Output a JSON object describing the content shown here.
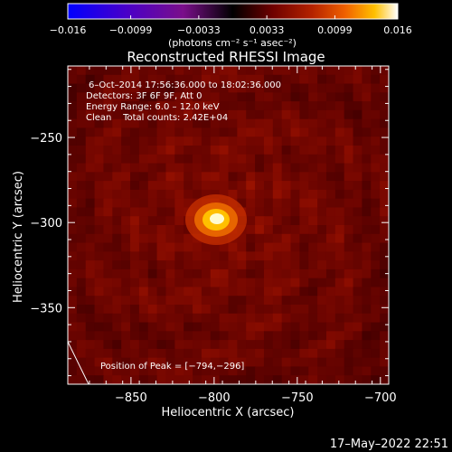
{
  "chart_data": {
    "type": "heatmap",
    "title": "Reconstructed RHESSI Image",
    "xlabel": "Heliocentric X (arcsec)",
    "ylabel": "Heliocentric Y (arcsec)",
    "xlim": [
      -888,
      -695
    ],
    "ylim": [
      -395,
      -208
    ],
    "x_ticks": [
      -850,
      -800,
      -750,
      -700
    ],
    "x_tick_labels": [
      "−850",
      "−800",
      "−750",
      "−700"
    ],
    "y_ticks": [
      -250,
      -300,
      -350
    ],
    "y_tick_labels": [
      "−250",
      "−300",
      "−350"
    ],
    "colorbar": {
      "ticks": [
        -0.016,
        -0.0099,
        -0.0033,
        0.0033,
        0.0099,
        0.016
      ],
      "tick_labels": [
        "−0.016",
        "−0.0099",
        "−0.0033",
        "0.0033",
        "0.0099",
        "0.016"
      ],
      "unit_label": "(photons cm⁻² s⁻¹ asec⁻²)",
      "colors": [
        "#0000ff",
        "#4a00c8",
        "#7a0f8a",
        "#000000",
        "#6e0000",
        "#b42200",
        "#f06000",
        "#ffc000",
        "#ffffff"
      ]
    },
    "peak": {
      "x": -794,
      "y": -296,
      "value": 0.016
    },
    "info_lines": [
      "6–Oct–2014 17:56:36.000 to 18:02:36.000",
      "Detectors: 3F 6F 9F, Att 0",
      "Energy Range: 6.0 – 12.0 keV",
      "Clean    Total counts: 2.42E+04"
    ],
    "peak_label": "Position of Peak = [−794,−296]",
    "grid": false
  },
  "footer_timestamp": "17–May–2022 22:51"
}
